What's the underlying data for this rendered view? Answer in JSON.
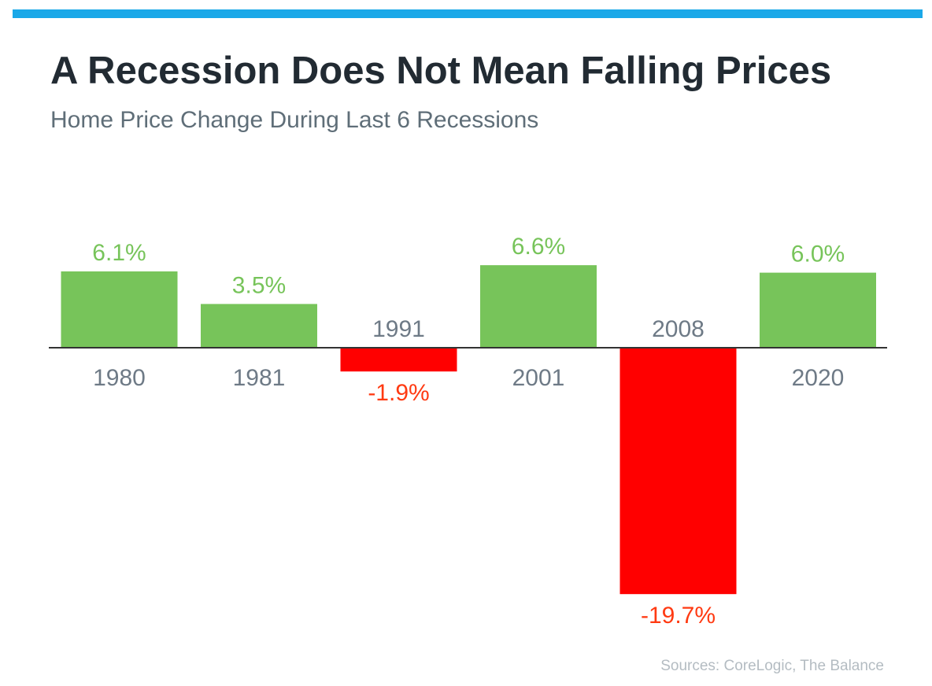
{
  "colors": {
    "accent_bar": "#1aa8e8",
    "positive": "#77c45a",
    "negative": "#ff0000",
    "negative_label": "#ff3a12",
    "year_label": "#6e7a86",
    "baseline": "#333333"
  },
  "header": {
    "title": "A Recession Does Not Mean Falling Prices",
    "subtitle": "Home Price Change During Last 6 Recessions"
  },
  "footer": {
    "source": "Sources: CoreLogic, The Balance"
  },
  "chart_data": {
    "type": "bar",
    "categories": [
      "1980",
      "1981",
      "1991",
      "2001",
      "2008",
      "2020"
    ],
    "values": [
      6.1,
      3.5,
      -1.9,
      6.6,
      -19.7,
      6.0
    ],
    "value_labels": [
      "6.1%",
      "3.5%",
      "-1.9%",
      "6.6%",
      "-19.7%",
      "6.0%"
    ],
    "title": "A Recession Does Not Mean Falling Prices",
    "subtitle": "Home Price Change During Last 6 Recessions",
    "xlabel": "",
    "ylabel": "",
    "grid": false,
    "legend": "none"
  }
}
